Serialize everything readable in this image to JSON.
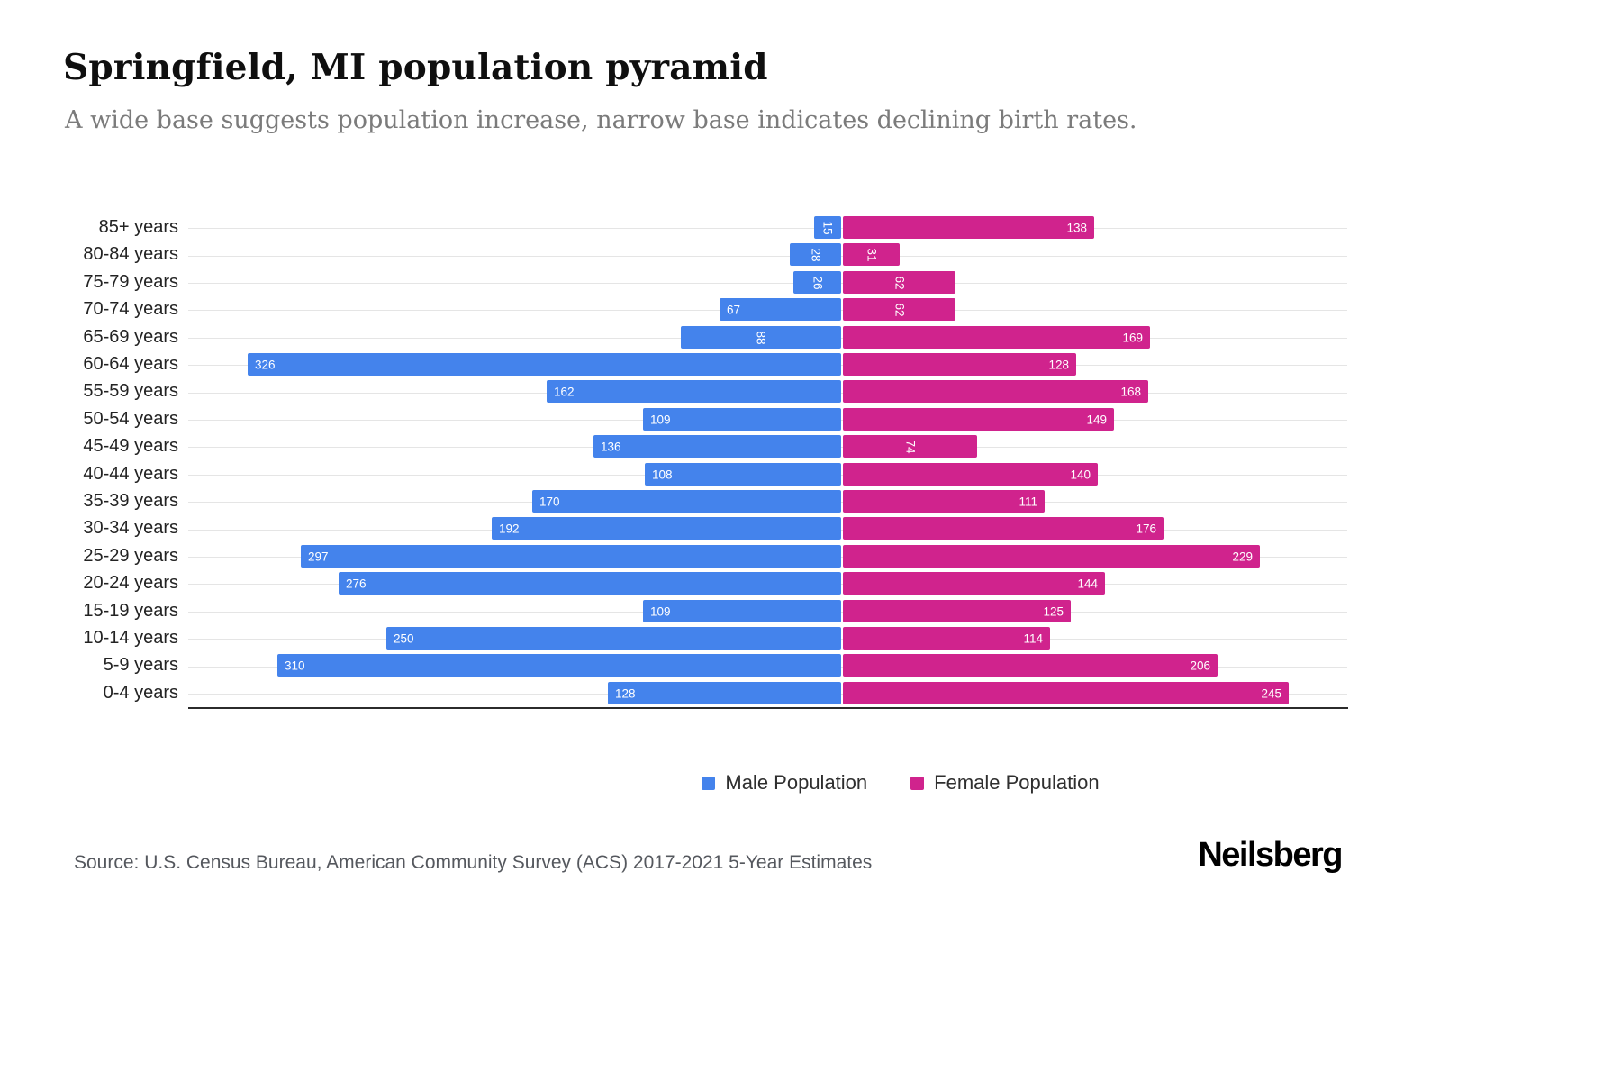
{
  "page": {
    "title": "Springfield, MI population pyramid",
    "subtitle": "A wide base suggests population increase, narrow base indicates declining birth rates.",
    "source": "Source: U.S. Census Bureau, American Community Survey (ACS) 2017-2021 5-Year Estimates",
    "brand": "Neilsberg"
  },
  "legend": [
    {
      "label": "Male Population",
      "color": "#4483EC"
    },
    {
      "label": "Female Population",
      "color": "#D0238D"
    }
  ],
  "chart_data": {
    "type": "bar",
    "variant": "population-pyramid",
    "orientation": "horizontal-diverging",
    "title": "Springfield, MI population pyramid",
    "subtitle": "A wide base suggests population increase, narrow base indicates declining birth rates.",
    "categories": [
      "85+ years",
      "80-84 years",
      "75-79 years",
      "70-74 years",
      "65-69 years",
      "60-64 years",
      "55-59 years",
      "50-54 years",
      "45-49 years",
      "40-44 years",
      "35-39 years",
      "30-34 years",
      "25-29 years",
      "20-24 years",
      "15-19 years",
      "10-14 years",
      "5-9 years",
      "0-4 years"
    ],
    "series": [
      {
        "name": "Male Population",
        "color": "#4483EC",
        "direction": "left",
        "values": [
          15,
          28,
          26,
          67,
          88,
          326,
          162,
          109,
          136,
          108,
          170,
          192,
          297,
          276,
          109,
          250,
          310,
          128
        ]
      },
      {
        "name": "Female Population",
        "color": "#D0238D",
        "direction": "right",
        "values": [
          138,
          31,
          62,
          62,
          169,
          128,
          168,
          149,
          74,
          140,
          111,
          176,
          229,
          144,
          125,
          114,
          206,
          245
        ]
      }
    ],
    "value_labels": true,
    "rotated_value_labels": [
      15,
      26,
      28,
      31,
      62,
      74,
      88
    ],
    "grid": true,
    "legend_position": "bottom",
    "axis": {
      "male_max": 360,
      "female_max": 280
    }
  }
}
